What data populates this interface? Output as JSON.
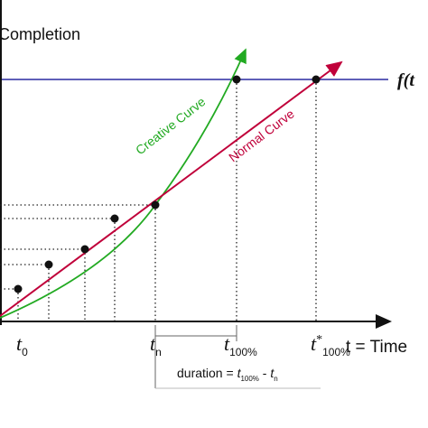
{
  "axis": {
    "y_label": "Completion",
    "x_label": "t = Time"
  },
  "limit_label": "f(t",
  "curves": [
    {
      "label": "Creative Curve"
    },
    {
      "label": "Normal Curve"
    }
  ],
  "ticks": [
    {
      "base": "t",
      "sub": "0"
    },
    {
      "base": "t",
      "sub": "n"
    },
    {
      "base": "t",
      "sub": "100%"
    },
    {
      "base": "t",
      "sup": "*",
      "sub": "100%"
    }
  ],
  "duration": {
    "prefix": "duration = ",
    "a": "t",
    "a_sub": "100%",
    "mid": " - ",
    "b": "t",
    "b_sub": "n"
  }
}
